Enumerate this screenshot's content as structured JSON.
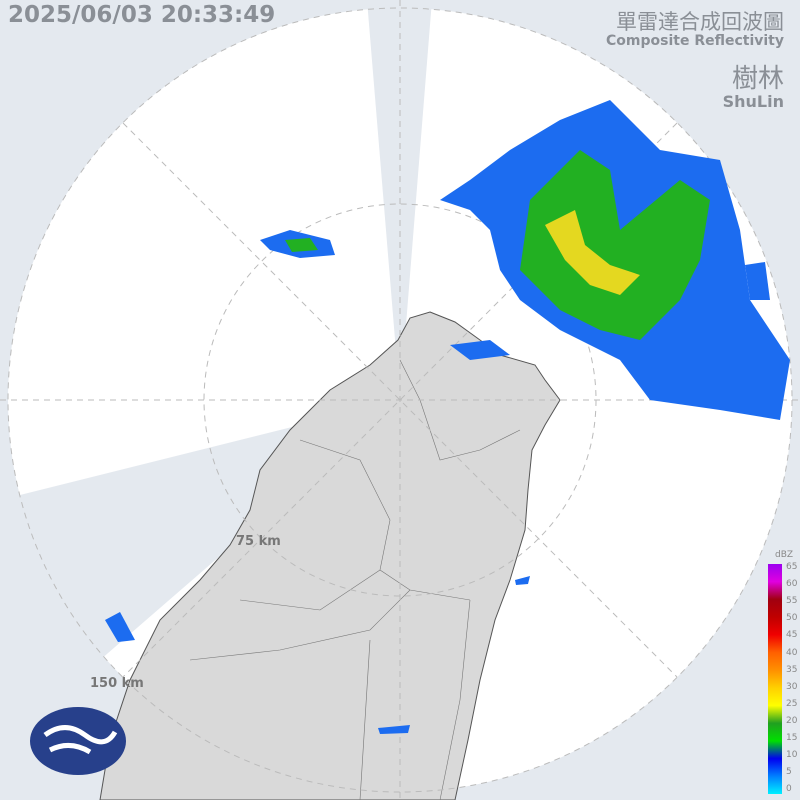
{
  "timestamp": "2025/06/03 20:33:49",
  "title_zh": "單雷達合成回波圖",
  "title_en": "Composite Reflectivity",
  "station_zh": "樹林",
  "station_en": "ShuLin",
  "range_rings": [
    "75 km",
    "150 km"
  ],
  "logo": "cwa-logo",
  "legend": {
    "unit": "dBZ",
    "ticks": [
      "65",
      "60",
      "55",
      "50",
      "45",
      "40",
      "35",
      "30",
      "25",
      "20",
      "15",
      "10",
      "5",
      "0"
    ],
    "colors": [
      "#9c00f0",
      "#e000e0",
      "#a00010",
      "#c00000",
      "#f00000",
      "#ff6000",
      "#ff9000",
      "#ffd000",
      "#ffff00",
      "#20a020",
      "#00e000",
      "#0000f0",
      "#0080ff",
      "#00f0ff"
    ]
  }
}
